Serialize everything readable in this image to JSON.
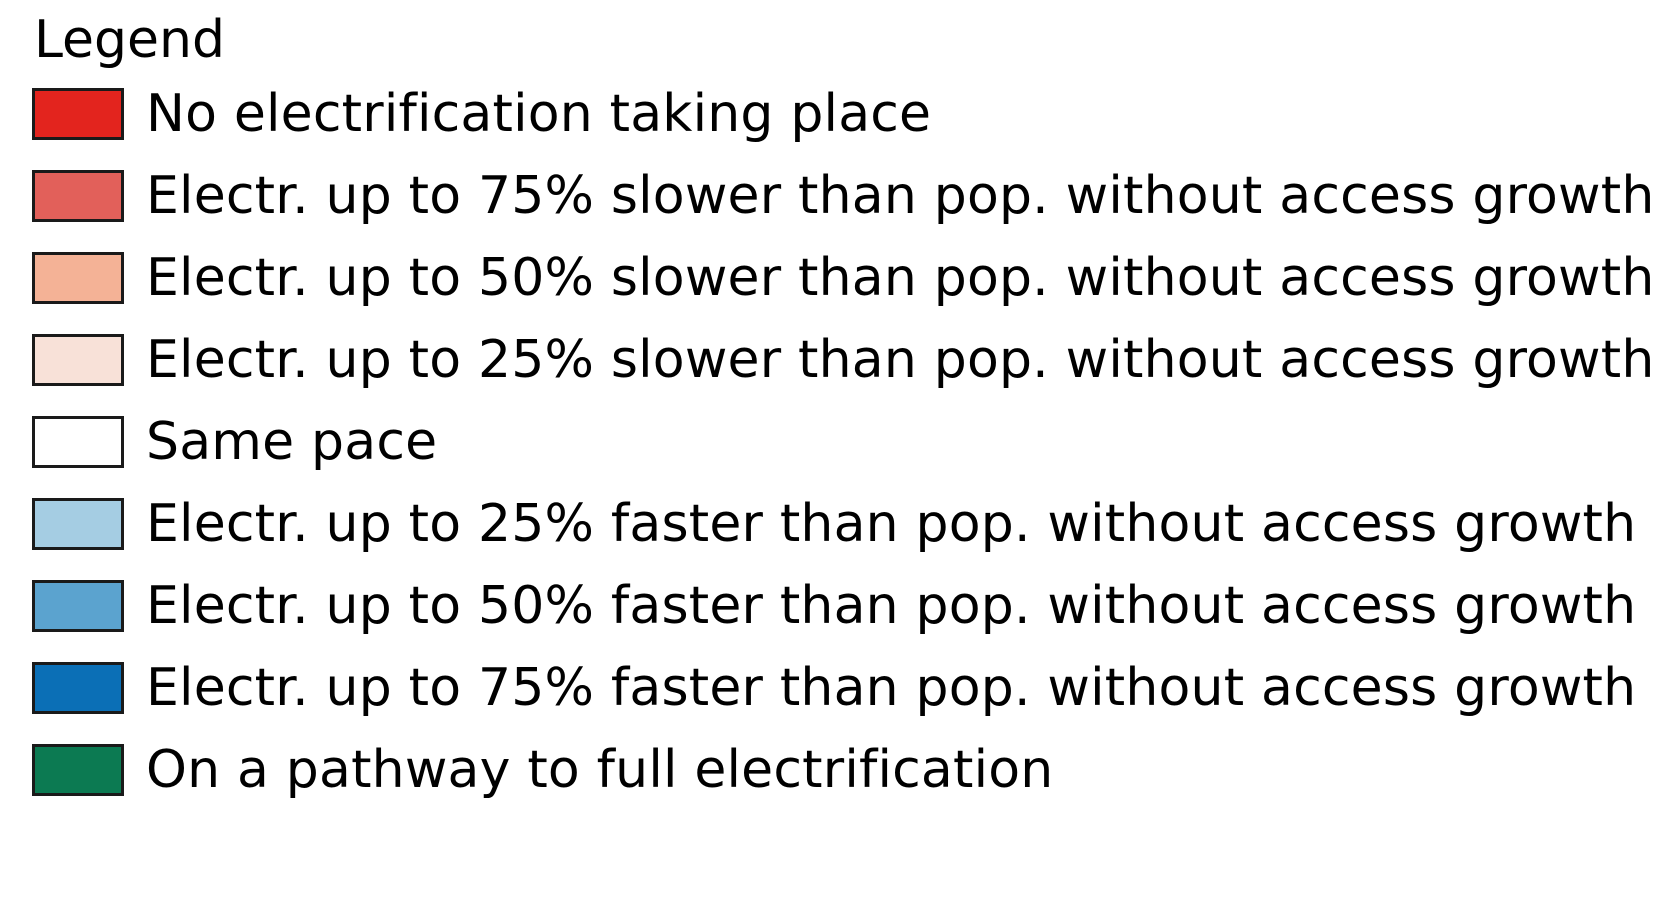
{
  "legend": {
    "title": "Legend",
    "items": [
      {
        "label": "No electrification taking place",
        "color": "#e3241e"
      },
      {
        "label": "Electr. up to 75% slower than pop. without access growth",
        "color": "#e2605a"
      },
      {
        "label": "Electr. up to 50% slower than pop. without access growth",
        "color": "#f4b296"
      },
      {
        "label": "Electr. up to 25% slower than pop. without access growth",
        "color": "#f8e1d8"
      },
      {
        "label": "Same pace",
        "color": "#ffffff"
      },
      {
        "label": "Electr. up to 25% faster than pop. without access growth",
        "color": "#a5cde3"
      },
      {
        "label": "Electr. up to 50% faster than pop. without access growth",
        "color": "#5ba3cf"
      },
      {
        "label": "Electr. up to 75% faster than pop. without access growth",
        "color": "#0b6fb6"
      },
      {
        "label": "On a pathway to full electrification",
        "color": "#0c7a52"
      }
    ]
  }
}
